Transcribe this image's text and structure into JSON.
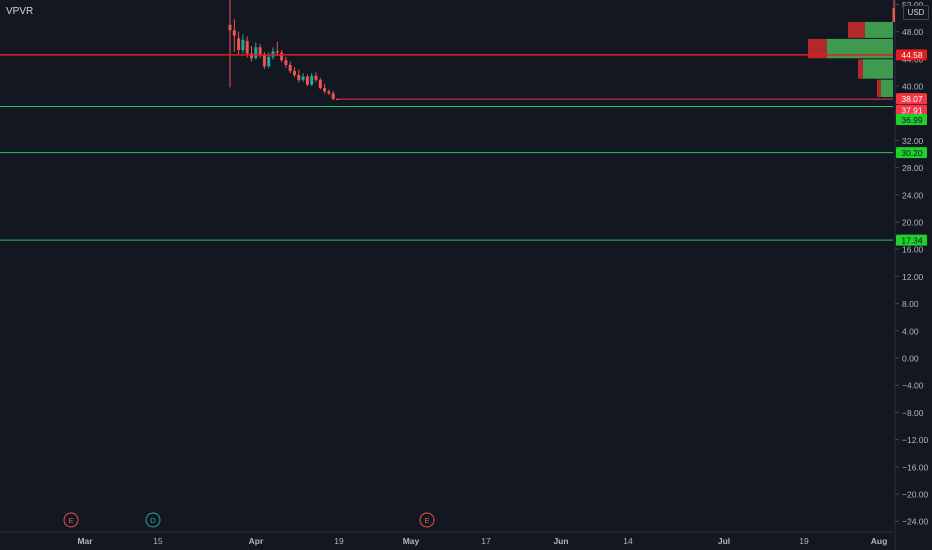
{
  "header": {
    "ticker": "VPVR",
    "currency": "USD"
  },
  "colors": {
    "background": "#131722",
    "up": "#26a69a",
    "down": "#ef5350",
    "support": "#22c55e",
    "resistance": "#e11d1d",
    "axis_text": "#b2b5be",
    "current": "#f23645"
  },
  "chart_data": {
    "type": "candlestick",
    "title": "",
    "y_axis": {
      "ticks": [
        "52.00",
        "48.00",
        "44.00",
        "40.00",
        "36.00",
        "32.00",
        "28.00",
        "24.00",
        "20.00",
        "16.00",
        "12.00",
        "8.00",
        "4.00",
        "0.00",
        "−4.00",
        "−8.00",
        "−12.00",
        "−16.00",
        "−20.00",
        "−24.00"
      ],
      "ylim": [
        -25.5,
        53
      ]
    },
    "x_axis": {
      "ticks": [
        "Mar",
        "15",
        "Apr",
        "19",
        "May",
        "17",
        "Jun",
        "14",
        "Jul",
        "19",
        "Aug"
      ]
    },
    "candles": [
      {
        "d": 0,
        "o": 49.0,
        "h": 55.0,
        "l": 39.8,
        "c": 48.2
      },
      {
        "d": 1,
        "o": 48.2,
        "h": 49.8,
        "l": 45.0,
        "c": 47.4
      },
      {
        "d": 2,
        "o": 47.0,
        "h": 48.0,
        "l": 44.5,
        "c": 45.3
      },
      {
        "d": 3,
        "o": 45.3,
        "h": 47.6,
        "l": 44.8,
        "c": 46.8
      },
      {
        "d": 4,
        "o": 46.6,
        "h": 47.3,
        "l": 44.2,
        "c": 44.8
      },
      {
        "d": 5,
        "o": 44.8,
        "h": 45.9,
        "l": 43.6,
        "c": 44.1
      },
      {
        "d": 6,
        "o": 44.1,
        "h": 46.4,
        "l": 43.9,
        "c": 45.7
      },
      {
        "d": 7,
        "o": 45.7,
        "h": 46.2,
        "l": 44.1,
        "c": 44.6
      },
      {
        "d": 8,
        "o": 44.6,
        "h": 45.0,
        "l": 42.5,
        "c": 42.9
      },
      {
        "d": 9,
        "o": 42.9,
        "h": 44.9,
        "l": 42.6,
        "c": 44.3
      },
      {
        "d": 10,
        "o": 44.3,
        "h": 45.7,
        "l": 43.9,
        "c": 45.1
      },
      {
        "d": 11,
        "o": 45.1,
        "h": 46.5,
        "l": 44.4,
        "c": 44.9
      },
      {
        "d": 12,
        "o": 44.9,
        "h": 45.3,
        "l": 43.5,
        "c": 43.8
      },
      {
        "d": 13,
        "o": 43.8,
        "h": 44.3,
        "l": 42.7,
        "c": 43.1
      },
      {
        "d": 14,
        "o": 43.1,
        "h": 43.6,
        "l": 41.9,
        "c": 42.2
      },
      {
        "d": 15,
        "o": 42.2,
        "h": 42.8,
        "l": 41.3,
        "c": 41.6
      },
      {
        "d": 16,
        "o": 41.6,
        "h": 42.4,
        "l": 40.5,
        "c": 40.9
      },
      {
        "d": 17,
        "o": 40.9,
        "h": 41.9,
        "l": 40.6,
        "c": 41.4
      },
      {
        "d": 18,
        "o": 41.4,
        "h": 41.7,
        "l": 40.0,
        "c": 40.2
      },
      {
        "d": 19,
        "o": 40.2,
        "h": 41.9,
        "l": 40.0,
        "c": 41.5
      },
      {
        "d": 20,
        "o": 41.5,
        "h": 42.0,
        "l": 40.6,
        "c": 40.9
      },
      {
        "d": 21,
        "o": 40.9,
        "h": 41.2,
        "l": 39.5,
        "c": 39.7
      },
      {
        "d": 22,
        "o": 39.7,
        "h": 40.3,
        "l": 38.9,
        "c": 39.2
      },
      {
        "d": 23,
        "o": 39.2,
        "h": 39.5,
        "l": 38.7,
        "c": 38.9
      },
      {
        "d": 24,
        "o": 38.9,
        "h": 39.3,
        "l": 37.9,
        "c": 38.1
      },
      {
        "d": 25,
        "o": 38.1,
        "h": 38.2,
        "l": 38.0,
        "c": 38.07
      }
    ],
    "horizontal_lines": [
      {
        "name": "resistance",
        "value": 44.58,
        "label": "44.58",
        "color": "#e11d1d"
      },
      {
        "name": "support-1",
        "value": 36.99,
        "label": "36.99",
        "color": "#22c55e"
      },
      {
        "name": "support-2",
        "value": 30.2,
        "label": "30.20",
        "color": "#22c55e"
      },
      {
        "name": "support-3",
        "value": 17.34,
        "label": "17.34",
        "color": "#22c55e"
      }
    ],
    "price_labels": [
      {
        "name": "last-price",
        "value": 38.07,
        "label": "38.07",
        "color": "#f23645"
      },
      {
        "name": "countdown",
        "value": 37.91,
        "label": "37.91",
        "color": "#f23645"
      }
    ],
    "volume_profile": [
      {
        "top": 49.5,
        "bottom": 47.0,
        "up": 0.28,
        "down": 0.45
      },
      {
        "top": 47.0,
        "bottom": 44.0,
        "up": 0.66,
        "down": 0.85
      },
      {
        "top": 44.0,
        "bottom": 41.0,
        "up": 0.3,
        "down": 0.35
      },
      {
        "top": 41.0,
        "bottom": 38.3,
        "up": 0.12,
        "down": 0.16
      }
    ],
    "events": [
      {
        "letter": "E",
        "type": "earnings",
        "color": "#ef5350"
      },
      {
        "letter": "D",
        "type": "dividend",
        "color": "#26a69a"
      },
      {
        "letter": "E",
        "type": "earnings",
        "color": "#ef5350"
      }
    ]
  }
}
